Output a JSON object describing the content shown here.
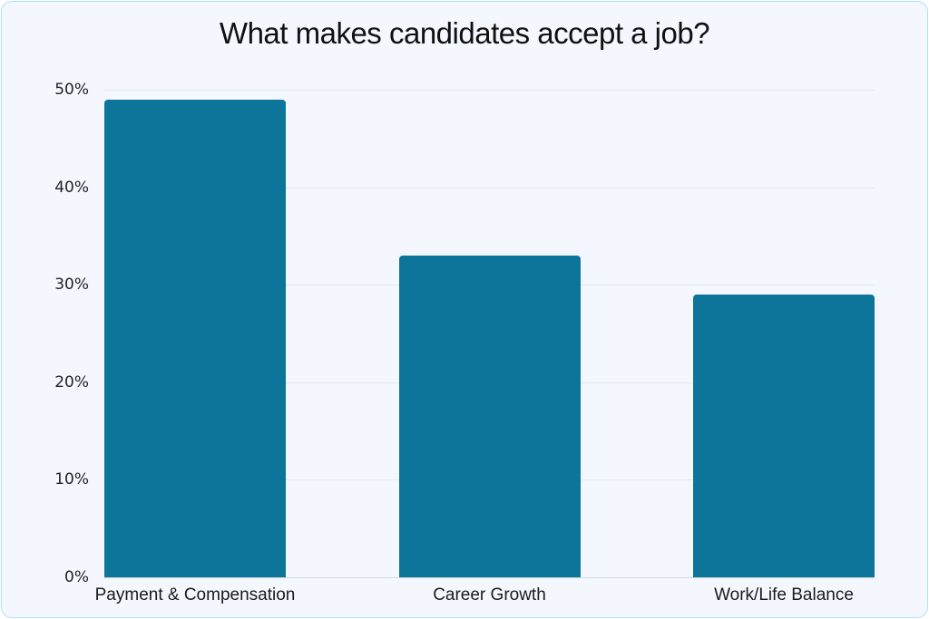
{
  "chart_data": {
    "type": "bar",
    "title": "What makes candidates accept a job?",
    "categories": [
      "Payment & Compensation",
      "Career Growth",
      "Work/Life Balance"
    ],
    "values": [
      49,
      33,
      29
    ],
    "xlabel": "",
    "ylabel": "",
    "ylim": [
      0,
      50
    ],
    "yticks": [
      "0%",
      "10%",
      "20%",
      "30%",
      "40%",
      "50%"
    ],
    "grid": true,
    "legend": null,
    "bar_color": "#0c7599"
  }
}
